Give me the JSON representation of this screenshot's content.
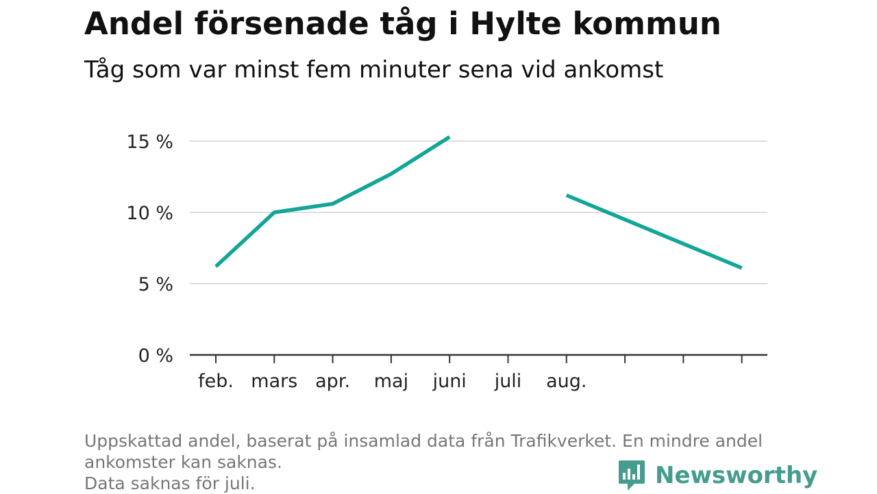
{
  "title": "Andel försenade tåg i Hylte kommun",
  "subtitle": "Tåg som var minst fem minuter sena vid ankomst",
  "footnote": {
    "line1": "Uppskattad andel, baserat på insamlad data från Trafikverket. En mindre andel",
    "line2": "ankomster kan saknas.",
    "line3": "Data saknas för juli."
  },
  "brand": {
    "name": "Newsworthy",
    "icon": "newsworthy-logo-icon",
    "color": "#459c8f"
  },
  "chart_data": {
    "type": "line",
    "categories": [
      "feb.",
      "mars",
      "apr.",
      "maj",
      "juni",
      "juli",
      "aug.",
      "",
      "",
      ""
    ],
    "series": [
      {
        "color": "#13a596",
        "values": [
          6.2,
          10.0,
          10.6,
          12.7,
          15.3,
          null,
          11.2,
          9.5,
          7.8,
          6.1
        ]
      }
    ],
    "yticks": [
      0,
      5,
      10,
      15
    ],
    "ytick_labels": [
      "0 %",
      "5 %",
      "10 %",
      "15 %"
    ],
    "ylim": [
      0,
      15.5
    ],
    "grid": true,
    "xlabel": "",
    "ylabel": ""
  }
}
